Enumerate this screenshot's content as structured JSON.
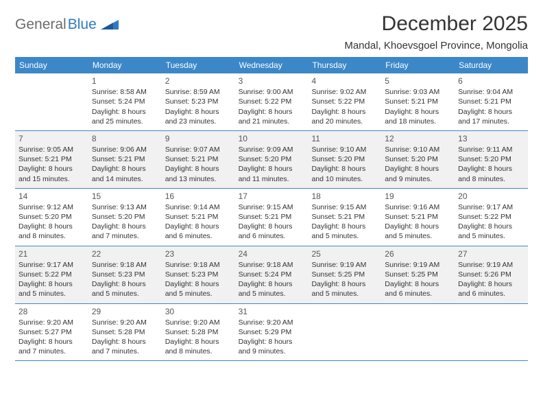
{
  "logo": {
    "part1": "General",
    "part2": "Blue"
  },
  "title": "December 2025",
  "location": "Mandal, Khoevsgoel Province, Mongolia",
  "colors": {
    "header_bg": "#3b87c8",
    "alt_row_bg": "#f1f1f1",
    "logo_gray": "#6b6b6b",
    "logo_blue": "#2f7ac0",
    "row_divider": "#3b87c8"
  },
  "weekdays": [
    "Sunday",
    "Monday",
    "Tuesday",
    "Wednesday",
    "Thursday",
    "Friday",
    "Saturday"
  ],
  "weeks": [
    {
      "alt": false,
      "days": [
        {
          "num": "",
          "sunrise": "",
          "sunset": "",
          "daylight": ""
        },
        {
          "num": "1",
          "sunrise": "Sunrise: 8:58 AM",
          "sunset": "Sunset: 5:24 PM",
          "daylight": "Daylight: 8 hours and 25 minutes."
        },
        {
          "num": "2",
          "sunrise": "Sunrise: 8:59 AM",
          "sunset": "Sunset: 5:23 PM",
          "daylight": "Daylight: 8 hours and 23 minutes."
        },
        {
          "num": "3",
          "sunrise": "Sunrise: 9:00 AM",
          "sunset": "Sunset: 5:22 PM",
          "daylight": "Daylight: 8 hours and 21 minutes."
        },
        {
          "num": "4",
          "sunrise": "Sunrise: 9:02 AM",
          "sunset": "Sunset: 5:22 PM",
          "daylight": "Daylight: 8 hours and 20 minutes."
        },
        {
          "num": "5",
          "sunrise": "Sunrise: 9:03 AM",
          "sunset": "Sunset: 5:21 PM",
          "daylight": "Daylight: 8 hours and 18 minutes."
        },
        {
          "num": "6",
          "sunrise": "Sunrise: 9:04 AM",
          "sunset": "Sunset: 5:21 PM",
          "daylight": "Daylight: 8 hours and 17 minutes."
        }
      ]
    },
    {
      "alt": true,
      "days": [
        {
          "num": "7",
          "sunrise": "Sunrise: 9:05 AM",
          "sunset": "Sunset: 5:21 PM",
          "daylight": "Daylight: 8 hours and 15 minutes."
        },
        {
          "num": "8",
          "sunrise": "Sunrise: 9:06 AM",
          "sunset": "Sunset: 5:21 PM",
          "daylight": "Daylight: 8 hours and 14 minutes."
        },
        {
          "num": "9",
          "sunrise": "Sunrise: 9:07 AM",
          "sunset": "Sunset: 5:21 PM",
          "daylight": "Daylight: 8 hours and 13 minutes."
        },
        {
          "num": "10",
          "sunrise": "Sunrise: 9:09 AM",
          "sunset": "Sunset: 5:20 PM",
          "daylight": "Daylight: 8 hours and 11 minutes."
        },
        {
          "num": "11",
          "sunrise": "Sunrise: 9:10 AM",
          "sunset": "Sunset: 5:20 PM",
          "daylight": "Daylight: 8 hours and 10 minutes."
        },
        {
          "num": "12",
          "sunrise": "Sunrise: 9:10 AM",
          "sunset": "Sunset: 5:20 PM",
          "daylight": "Daylight: 8 hours and 9 minutes."
        },
        {
          "num": "13",
          "sunrise": "Sunrise: 9:11 AM",
          "sunset": "Sunset: 5:20 PM",
          "daylight": "Daylight: 8 hours and 8 minutes."
        }
      ]
    },
    {
      "alt": false,
      "days": [
        {
          "num": "14",
          "sunrise": "Sunrise: 9:12 AM",
          "sunset": "Sunset: 5:20 PM",
          "daylight": "Daylight: 8 hours and 8 minutes."
        },
        {
          "num": "15",
          "sunrise": "Sunrise: 9:13 AM",
          "sunset": "Sunset: 5:20 PM",
          "daylight": "Daylight: 8 hours and 7 minutes."
        },
        {
          "num": "16",
          "sunrise": "Sunrise: 9:14 AM",
          "sunset": "Sunset: 5:21 PM",
          "daylight": "Daylight: 8 hours and 6 minutes."
        },
        {
          "num": "17",
          "sunrise": "Sunrise: 9:15 AM",
          "sunset": "Sunset: 5:21 PM",
          "daylight": "Daylight: 8 hours and 6 minutes."
        },
        {
          "num": "18",
          "sunrise": "Sunrise: 9:15 AM",
          "sunset": "Sunset: 5:21 PM",
          "daylight": "Daylight: 8 hours and 5 minutes."
        },
        {
          "num": "19",
          "sunrise": "Sunrise: 9:16 AM",
          "sunset": "Sunset: 5:21 PM",
          "daylight": "Daylight: 8 hours and 5 minutes."
        },
        {
          "num": "20",
          "sunrise": "Sunrise: 9:17 AM",
          "sunset": "Sunset: 5:22 PM",
          "daylight": "Daylight: 8 hours and 5 minutes."
        }
      ]
    },
    {
      "alt": true,
      "days": [
        {
          "num": "21",
          "sunrise": "Sunrise: 9:17 AM",
          "sunset": "Sunset: 5:22 PM",
          "daylight": "Daylight: 8 hours and 5 minutes."
        },
        {
          "num": "22",
          "sunrise": "Sunrise: 9:18 AM",
          "sunset": "Sunset: 5:23 PM",
          "daylight": "Daylight: 8 hours and 5 minutes."
        },
        {
          "num": "23",
          "sunrise": "Sunrise: 9:18 AM",
          "sunset": "Sunset: 5:23 PM",
          "daylight": "Daylight: 8 hours and 5 minutes."
        },
        {
          "num": "24",
          "sunrise": "Sunrise: 9:18 AM",
          "sunset": "Sunset: 5:24 PM",
          "daylight": "Daylight: 8 hours and 5 minutes."
        },
        {
          "num": "25",
          "sunrise": "Sunrise: 9:19 AM",
          "sunset": "Sunset: 5:25 PM",
          "daylight": "Daylight: 8 hours and 5 minutes."
        },
        {
          "num": "26",
          "sunrise": "Sunrise: 9:19 AM",
          "sunset": "Sunset: 5:25 PM",
          "daylight": "Daylight: 8 hours and 6 minutes."
        },
        {
          "num": "27",
          "sunrise": "Sunrise: 9:19 AM",
          "sunset": "Sunset: 5:26 PM",
          "daylight": "Daylight: 8 hours and 6 minutes."
        }
      ]
    },
    {
      "alt": false,
      "days": [
        {
          "num": "28",
          "sunrise": "Sunrise: 9:20 AM",
          "sunset": "Sunset: 5:27 PM",
          "daylight": "Daylight: 8 hours and 7 minutes."
        },
        {
          "num": "29",
          "sunrise": "Sunrise: 9:20 AM",
          "sunset": "Sunset: 5:28 PM",
          "daylight": "Daylight: 8 hours and 7 minutes."
        },
        {
          "num": "30",
          "sunrise": "Sunrise: 9:20 AM",
          "sunset": "Sunset: 5:28 PM",
          "daylight": "Daylight: 8 hours and 8 minutes."
        },
        {
          "num": "31",
          "sunrise": "Sunrise: 9:20 AM",
          "sunset": "Sunset: 5:29 PM",
          "daylight": "Daylight: 8 hours and 9 minutes."
        },
        {
          "num": "",
          "sunrise": "",
          "sunset": "",
          "daylight": ""
        },
        {
          "num": "",
          "sunrise": "",
          "sunset": "",
          "daylight": ""
        },
        {
          "num": "",
          "sunrise": "",
          "sunset": "",
          "daylight": ""
        }
      ]
    }
  ]
}
